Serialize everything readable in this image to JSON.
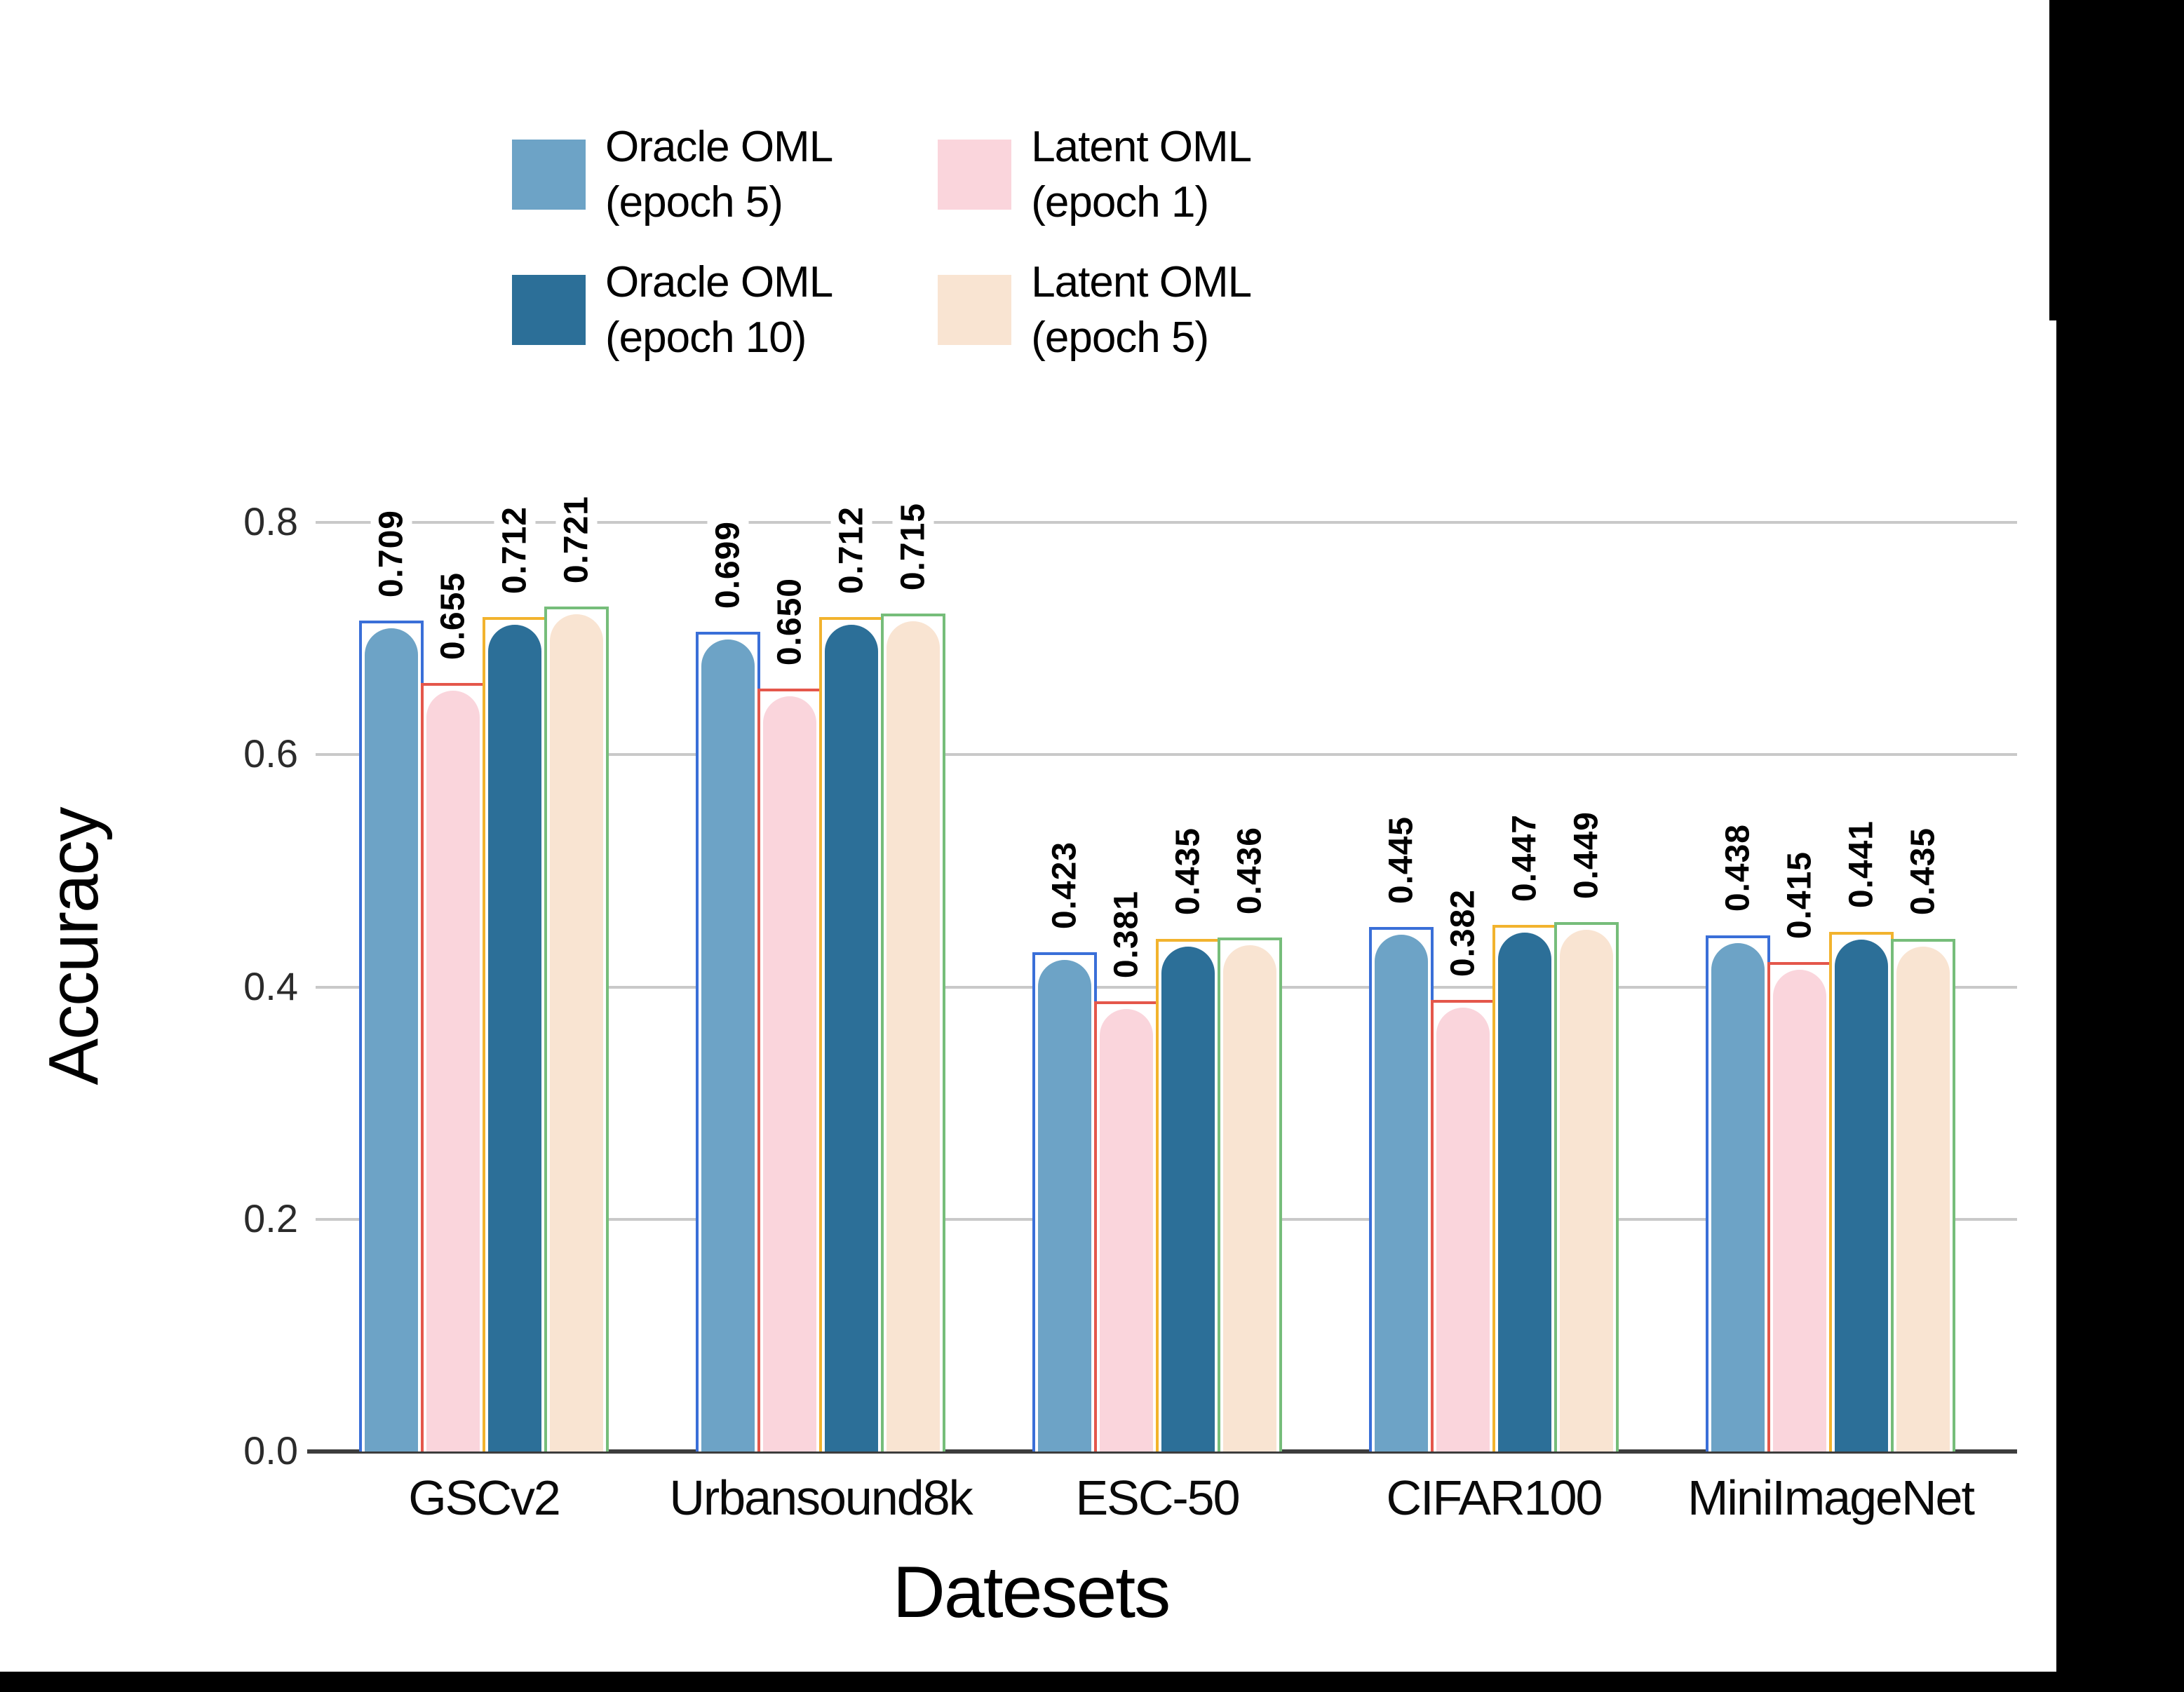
{
  "figure": {
    "background": "#ffffff",
    "frame_color": "#000000"
  },
  "chart_data": {
    "type": "bar",
    "title": "",
    "xlabel": "Datesets",
    "ylabel": "Accuracy",
    "categories": [
      "GSCv2",
      "Urbansound8k",
      "ESC-50",
      "CIFAR100",
      "MiniImageNet"
    ],
    "series": [
      {
        "name": "Oracle OML (epoch 5)",
        "legend_lines": [
          "Oracle OML",
          "(epoch 5)"
        ],
        "color": "#6da3c6",
        "edge_color": "#3a6fd8",
        "values": [
          0.709,
          0.699,
          0.423,
          0.445,
          0.438
        ]
      },
      {
        "name": "Latent OML (epoch 1)",
        "legend_lines": [
          "Latent OML",
          "(epoch 1)"
        ],
        "color": "#fad5dc",
        "edge_color": "#e4574b",
        "values": [
          0.655,
          0.65,
          0.381,
          0.382,
          0.415
        ]
      },
      {
        "name": "Oracle OML (epoch 10)",
        "legend_lines": [
          "Oracle OML",
          "(epoch 10)"
        ],
        "color": "#2c6f98",
        "edge_color": "#f2b32e",
        "values": [
          0.712,
          0.712,
          0.435,
          0.447,
          0.441
        ]
      },
      {
        "name": "Latent OML (epoch 5)",
        "legend_lines": [
          "Latent OML",
          "(epoch 5)"
        ],
        "color": "#f9e4d2",
        "edge_color": "#76bd7a",
        "values": [
          0.721,
          0.715,
          0.436,
          0.449,
          0.435
        ]
      }
    ],
    "value_label_decimals": 3,
    "ytick_values": [
      0.0,
      0.2,
      0.4,
      0.6,
      0.8
    ],
    "ytick_labels": [
      "0.0",
      "0.2",
      "0.4",
      "0.6",
      "0.8"
    ],
    "ylim": [
      0.0,
      0.875
    ],
    "grid": "horizontal",
    "legend_position": "top",
    "legend_columns": 2
  }
}
